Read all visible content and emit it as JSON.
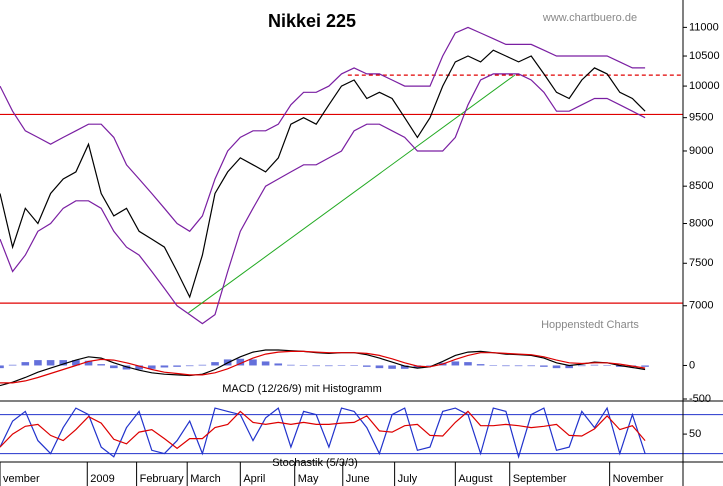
{
  "chart_data": [
    {
      "type": "line",
      "title": "Nikkei 225",
      "annotations": [
        "www.chartbuero.de",
        "Hoppenstedt Charts"
      ],
      "log": true,
      "ylim": [
        6600,
        11500
      ],
      "yticks": [
        7000,
        7500,
        8000,
        8500,
        9000,
        9500,
        10000,
        10500,
        11000
      ],
      "xlim": [
        0,
        54
      ],
      "series": [
        {
          "color": "#000000",
          "values": [
            8400,
            7700,
            8200,
            8000,
            8400,
            8600,
            8700,
            9100,
            8400,
            8100,
            8200,
            7900,
            7800,
            7700,
            7400,
            7100,
            7600,
            8400,
            8700,
            8900,
            8800,
            8700,
            8900,
            9400,
            9500,
            9400,
            9700,
            10000,
            10100,
            9800,
            9900,
            9800,
            9500,
            9200,
            9500,
            10000,
            10400,
            10500,
            10400,
            10600,
            10500,
            10400,
            10500,
            10200,
            9900,
            9800,
            10100,
            10300,
            10200,
            9900,
            9800,
            9600
          ]
        },
        {
          "color": "#7a1fa2",
          "values": [
            10000,
            9600,
            9300,
            9200,
            9100,
            9200,
            9300,
            9400,
            9400,
            9200,
            8800,
            8600,
            8400,
            8200,
            8000,
            7900,
            8100,
            8600,
            9000,
            9200,
            9300,
            9300,
            9400,
            9700,
            9900,
            9900,
            10000,
            10200,
            10300,
            10200,
            10200,
            10100,
            10000,
            10000,
            10000,
            10500,
            10900,
            11000,
            10900,
            10800,
            10700,
            10700,
            10700,
            10600,
            10500,
            10500,
            10500,
            10500,
            10500,
            10400,
            10300,
            10300
          ]
        },
        {
          "color": "#7a1fa2",
          "values": [
            7800,
            7400,
            7600,
            7900,
            8000,
            8200,
            8300,
            8300,
            8200,
            7900,
            7700,
            7600,
            7400,
            7200,
            7000,
            6900,
            6800,
            6900,
            7400,
            7900,
            8200,
            8500,
            8600,
            8700,
            8800,
            8800,
            8900,
            9000,
            9300,
            9400,
            9400,
            9300,
            9200,
            9000,
            9000,
            9000,
            9200,
            9700,
            10100,
            10200,
            10200,
            10200,
            10100,
            9900,
            9600,
            9600,
            9700,
            9800,
            9800,
            9700,
            9600,
            9500
          ]
        }
      ],
      "hlines": [
        {
          "value": 9550,
          "color": "#e00000"
        },
        {
          "value": 7030,
          "color": "#e00000"
        },
        {
          "value": 10180,
          "color": "#e00000",
          "dashed": true,
          "xstart": 27.5
        }
      ],
      "trendline": {
        "color": "#22aa22",
        "x": [
          14.9,
          40.7
        ],
        "values": [
          6920,
          10180
        ]
      }
    },
    {
      "type": "line",
      "title": "MACD (12/26/9) mit Histogramm",
      "ylim": [
        -530,
        350
      ],
      "yticks": [
        -500,
        0
      ],
      "xlim": [
        0,
        54
      ],
      "histogram": {
        "color": "#2233cc",
        "values": [
          -40,
          10,
          50,
          80,
          80,
          80,
          80,
          70,
          20,
          -40,
          -60,
          -60,
          -50,
          -30,
          -20,
          -10,
          10,
          50,
          90,
          100,
          90,
          60,
          30,
          10,
          0,
          -10,
          -10,
          0,
          0,
          -20,
          -40,
          -50,
          -50,
          -30,
          0,
          40,
          60,
          50,
          20,
          0,
          -10,
          -10,
          -10,
          -20,
          -40,
          -40,
          -10,
          10,
          0,
          -20,
          -20,
          -20
        ]
      },
      "series": [
        {
          "color": "#000000",
          "values": [
            -300,
            -250,
            -180,
            -100,
            -40,
            20,
            80,
            130,
            110,
            40,
            -20,
            -70,
            -110,
            -130,
            -140,
            -150,
            -130,
            -60,
            40,
            130,
            200,
            230,
            230,
            220,
            210,
            190,
            180,
            190,
            190,
            160,
            110,
            50,
            -10,
            -40,
            -20,
            60,
            150,
            200,
            210,
            190,
            170,
            160,
            150,
            110,
            40,
            0,
            20,
            50,
            40,
            0,
            -30,
            -60
          ]
        },
        {
          "color": "#dd0000",
          "values": [
            -260,
            -260,
            -230,
            -180,
            -120,
            -60,
            0,
            60,
            90,
            80,
            40,
            -10,
            -60,
            -100,
            -120,
            -140,
            -140,
            -110,
            -50,
            30,
            110,
            170,
            200,
            210,
            210,
            200,
            190,
            190,
            190,
            180,
            150,
            100,
            40,
            -10,
            -20,
            20,
            90,
            150,
            190,
            190,
            180,
            170,
            160,
            130,
            80,
            40,
            30,
            40,
            40,
            20,
            -10,
            -40
          ]
        }
      ]
    },
    {
      "type": "line",
      "title": "Stochastik (5/3/3)",
      "ylim": [
        7,
        101
      ],
      "yticks": [
        50
      ],
      "levels": [
        20,
        80
      ],
      "level_color": "#2233cc",
      "xlim": [
        0,
        54
      ],
      "xticks": [
        {
          "value": 0,
          "label": "vember"
        },
        {
          "value": 6.9,
          "label": "2009"
        },
        {
          "value": 10.8,
          "label": "February"
        },
        {
          "value": 14.8,
          "label": "March"
        },
        {
          "value": 19,
          "label": "April"
        },
        {
          "value": 23.3,
          "label": "May"
        },
        {
          "value": 27.1,
          "label": "June"
        },
        {
          "value": 31.2,
          "label": "July"
        },
        {
          "value": 36,
          "label": "August"
        },
        {
          "value": 40.3,
          "label": "September"
        },
        {
          "value": 48.2,
          "label": "November"
        }
      ],
      "series": [
        {
          "color": "#2233cc",
          "values": [
            30,
            70,
            85,
            40,
            20,
            60,
            90,
            80,
            30,
            15,
            60,
            85,
            25,
            20,
            40,
            70,
            20,
            90,
            85,
            80,
            40,
            75,
            90,
            30,
            85,
            80,
            30,
            90,
            85,
            60,
            20,
            80,
            90,
            25,
            30,
            85,
            90,
            80,
            20,
            90,
            85,
            15,
            80,
            90,
            25,
            30,
            85,
            60,
            90,
            20,
            80,
            20
          ]
        },
        {
          "color": "#dd0000",
          "values": [
            30,
            50,
            62,
            65,
            48,
            40,
            57,
            77,
            67,
            42,
            35,
            53,
            57,
            43,
            28,
            43,
            43,
            60,
            65,
            85,
            68,
            65,
            68,
            65,
            68,
            65,
            65,
            67,
            68,
            78,
            55,
            53,
            63,
            65,
            48,
            47,
            68,
            85,
            63,
            63,
            65,
            63,
            60,
            62,
            65,
            48,
            47,
            58,
            78,
            57,
            63,
            40
          ]
        }
      ]
    }
  ]
}
